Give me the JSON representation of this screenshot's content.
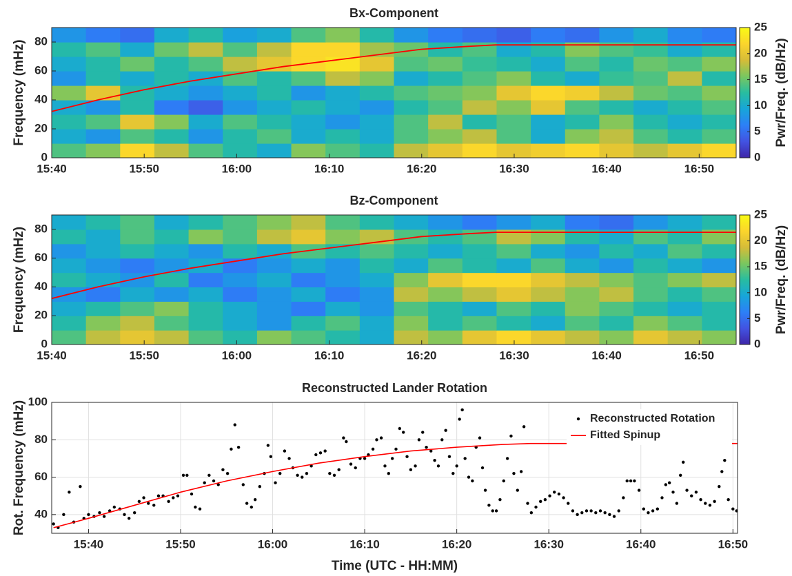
{
  "chart_data": [
    {
      "type": "heatmap",
      "title": "Bx-Component",
      "y_label": "Frequency (mHz)",
      "colorbar_label": "Pwr/Freq. (dB/Hz)",
      "xlim": [
        40,
        114
      ],
      "ylim": [
        0,
        90
      ],
      "xticks": [
        {
          "value": 40,
          "label": "15:40"
        },
        {
          "value": 50,
          "label": "15:50"
        },
        {
          "value": 60,
          "label": "16:00"
        },
        {
          "value": 70,
          "label": "16:10"
        },
        {
          "value": 80,
          "label": "16:20"
        },
        {
          "value": 90,
          "label": "16:30"
        },
        {
          "value": 100,
          "label": "16:40"
        },
        {
          "value": 110,
          "label": "16:50"
        }
      ],
      "yticks": [
        0,
        20,
        40,
        60,
        80
      ],
      "clim": [
        0,
        25
      ],
      "cticks": [
        0,
        5,
        10,
        15,
        20,
        25
      ],
      "colormap": [
        "#3e26a8",
        "#4253e2",
        "#2c80f7",
        "#17a6d9",
        "#28bda0",
        "#7ac75f",
        "#d6bc38",
        "#fbd52c",
        "#f9fb15"
      ],
      "x": [
        41.85,
        45.55,
        49.25,
        52.95,
        56.65,
        60.35,
        64.05,
        67.75,
        71.45,
        75.15,
        78.85,
        82.55,
        86.25,
        89.95,
        93.65,
        97.35,
        101.05,
        104.75,
        108.45,
        112.15
      ],
      "y": [
        5,
        15,
        25,
        35,
        45,
        55,
        65,
        75,
        85
      ],
      "z": [
        [
          14,
          16,
          22,
          18,
          14,
          12,
          10,
          16,
          14,
          12,
          18,
          20,
          22,
          20,
          21,
          22,
          20,
          18,
          20,
          22
        ],
        [
          10,
          8,
          14,
          12,
          8,
          12,
          14,
          10,
          12,
          10,
          14,
          16,
          18,
          14,
          10,
          16,
          18,
          14,
          12,
          14
        ],
        [
          12,
          14,
          20,
          16,
          10,
          14,
          12,
          10,
          8,
          10,
          14,
          18,
          12,
          14,
          10,
          12,
          16,
          12,
          10,
          12
        ],
        [
          10,
          8,
          12,
          6,
          4,
          8,
          10,
          12,
          10,
          8,
          12,
          14,
          18,
          16,
          20,
          14,
          12,
          10,
          12,
          14
        ],
        [
          16,
          20,
          12,
          10,
          8,
          10,
          12,
          8,
          10,
          12,
          14,
          15,
          16,
          20,
          22,
          21,
          18,
          15,
          14,
          16
        ],
        [
          8,
          12,
          10,
          12,
          10,
          14,
          12,
          14,
          18,
          16,
          10,
          12,
          14,
          16,
          12,
          10,
          13,
          14,
          18,
          12
        ],
        [
          10,
          12,
          15,
          12,
          14,
          18,
          20,
          22,
          23,
          20,
          14,
          15,
          13,
          12,
          10,
          14,
          12,
          15,
          14,
          16
        ],
        [
          12,
          14,
          10,
          15,
          18,
          14,
          18,
          22,
          22,
          17,
          15,
          12,
          14,
          10,
          12,
          16,
          14,
          13,
          10,
          12
        ],
        [
          8,
          6,
          5,
          10,
          12,
          9,
          10,
          14,
          16,
          12,
          8,
          6,
          5,
          4,
          6,
          5,
          8,
          10,
          7,
          6
        ]
      ],
      "fit": {
        "color": "#ff0000",
        "x": [
          40,
          45,
          50,
          55,
          60,
          65,
          70,
          75,
          80,
          85,
          88,
          114
        ],
        "values": [
          32,
          40,
          47,
          53,
          58,
          63,
          67,
          71,
          75,
          77,
          78,
          78
        ]
      }
    },
    {
      "type": "heatmap",
      "title": "Bz-Component",
      "y_label": "Frequency (mHz)",
      "colorbar_label": "Pwr/Freq. (dB/Hz)",
      "xlim": [
        40,
        114
      ],
      "ylim": [
        0,
        90
      ],
      "xticks": [
        {
          "value": 40,
          "label": "15:40"
        },
        {
          "value": 50,
          "label": "15:50"
        },
        {
          "value": 60,
          "label": "16:00"
        },
        {
          "value": 70,
          "label": "16:10"
        },
        {
          "value": 80,
          "label": "16:20"
        },
        {
          "value": 90,
          "label": "16:30"
        },
        {
          "value": 100,
          "label": "16:40"
        },
        {
          "value": 110,
          "label": "16:50"
        }
      ],
      "yticks": [
        0,
        20,
        40,
        60,
        80
      ],
      "clim": [
        0,
        25
      ],
      "cticks": [
        0,
        5,
        10,
        15,
        20,
        25
      ],
      "colormap": [
        "#3e26a8",
        "#4253e2",
        "#2c80f7",
        "#17a6d9",
        "#28bda0",
        "#7ac75f",
        "#d6bc38",
        "#fbd52c",
        "#f9fb15"
      ],
      "x": [
        41.85,
        45.55,
        49.25,
        52.95,
        56.65,
        60.35,
        64.05,
        67.75,
        71.45,
        75.15,
        78.85,
        82.55,
        86.25,
        89.95,
        93.65,
        97.35,
        101.05,
        104.75,
        108.45,
        112.15
      ],
      "y": [
        5,
        15,
        25,
        35,
        45,
        55,
        65,
        75,
        85
      ],
      "z": [
        [
          14,
          18,
          20,
          18,
          14,
          12,
          16,
          14,
          12,
          10,
          18,
          16,
          20,
          22,
          20,
          18,
          16,
          20,
          18,
          16
        ],
        [
          12,
          16,
          18,
          14,
          12,
          10,
          8,
          12,
          14,
          10,
          16,
          12,
          14,
          12,
          10,
          14,
          12,
          16,
          14,
          12
        ],
        [
          10,
          12,
          14,
          16,
          12,
          10,
          8,
          6,
          10,
          8,
          14,
          12,
          10,
          14,
          12,
          16,
          14,
          12,
          10,
          12
        ],
        [
          8,
          6,
          10,
          8,
          10,
          6,
          8,
          10,
          6,
          8,
          18,
          16,
          18,
          20,
          18,
          16,
          18,
          14,
          12,
          14
        ],
        [
          12,
          10,
          8,
          12,
          6,
          8,
          10,
          6,
          8,
          10,
          16,
          20,
          22,
          22,
          20,
          18,
          16,
          14,
          16,
          18
        ],
        [
          10,
          8,
          6,
          8,
          10,
          6,
          8,
          10,
          8,
          12,
          10,
          14,
          12,
          10,
          14,
          10,
          8,
          12,
          10,
          8
        ],
        [
          8,
          10,
          12,
          10,
          8,
          12,
          10,
          14,
          12,
          14,
          12,
          10,
          12,
          14,
          10,
          8,
          12,
          10,
          14,
          12
        ],
        [
          12,
          10,
          14,
          12,
          16,
          14,
          18,
          20,
          16,
          18,
          14,
          12,
          14,
          18,
          16,
          12,
          10,
          14,
          12,
          16
        ],
        [
          10,
          12,
          14,
          10,
          12,
          14,
          16,
          18,
          14,
          12,
          10,
          8,
          6,
          8,
          10,
          6,
          5,
          8,
          10,
          12
        ]
      ],
      "fit": {
        "color": "#ff0000",
        "x": [
          40,
          45,
          50,
          55,
          60,
          65,
          70,
          75,
          80,
          85,
          88,
          114
        ],
        "values": [
          32,
          40,
          47,
          53,
          58,
          63,
          67,
          71,
          75,
          77,
          78,
          78
        ]
      }
    },
    {
      "type": "scatter",
      "title": "Reconstructed Lander Rotation",
      "x_label": "Time (UTC - HH:MM)",
      "y_label": "Rot. Frequency (mHz)",
      "xlim": [
        36,
        110.5
      ],
      "ylim": [
        30,
        100
      ],
      "grid": true,
      "legend": "upper right",
      "xticks": [
        {
          "value": 40,
          "label": "15:40"
        },
        {
          "value": 50,
          "label": "15:50"
        },
        {
          "value": 60,
          "label": "16:00"
        },
        {
          "value": 70,
          "label": "16:10"
        },
        {
          "value": 80,
          "label": "16:20"
        },
        {
          "value": 90,
          "label": "16:30"
        },
        {
          "value": 100,
          "label": "16:40"
        },
        {
          "value": 110,
          "label": "16:50"
        }
      ],
      "yticks": [
        40,
        60,
        80,
        100
      ],
      "series": [
        {
          "name": "Reconstructed Rotation",
          "color": "#000000",
          "x": [
            36.2,
            36.7,
            37.3,
            37.9,
            38.4,
            39.1,
            39.5,
            40.0,
            40.6,
            41.2,
            41.7,
            42.3,
            42.8,
            43.4,
            43.9,
            44.4,
            45.0,
            45.5,
            46.0,
            46.5,
            47.1,
            47.6,
            48.1,
            48.7,
            49.2,
            49.7,
            50.3,
            50.7,
            51.2,
            51.6,
            52.1,
            52.6,
            53.1,
            53.6,
            54.1,
            54.6,
            55.1,
            55.5,
            55.9,
            56.3,
            56.8,
            57.2,
            57.7,
            58.1,
            58.6,
            59.1,
            59.5,
            59.8,
            60.3,
            60.8,
            61.3,
            61.8,
            62.2,
            62.7,
            63.2,
            63.7,
            64.2,
            64.7,
            65.2,
            65.7,
            66.2,
            66.7,
            67.2,
            67.7,
            68.0,
            68.5,
            69.0,
            69.5,
            70.0,
            70.4,
            70.9,
            71.3,
            71.8,
            72.2,
            72.6,
            73.0,
            73.4,
            73.8,
            74.2,
            74.6,
            75.0,
            75.5,
            75.9,
            76.3,
            76.7,
            77.2,
            77.6,
            78.0,
            78.4,
            78.8,
            79.2,
            79.6,
            80.0,
            80.3,
            80.6,
            80.9,
            81.3,
            81.7,
            82.1,
            82.5,
            82.8,
            83.1,
            83.5,
            83.9,
            84.3,
            84.7,
            85.1,
            85.5,
            85.9,
            86.2,
            86.6,
            87.0,
            87.3,
            87.7,
            88.1,
            88.6,
            89.1,
            89.6,
            90.1,
            90.6,
            91.1,
            91.6,
            92.1,
            92.6,
            93.1,
            93.6,
            94.1,
            94.6,
            95.1,
            95.6,
            96.1,
            96.6,
            97.1,
            97.6,
            98.1,
            98.5,
            98.9,
            99.3,
            99.8,
            100.3,
            100.8,
            101.3,
            101.8,
            102.3,
            102.7,
            103.1,
            103.5,
            103.9,
            104.3,
            104.6,
            105.0,
            105.5,
            106.0,
            106.5,
            107.0,
            107.5,
            108.0,
            108.5,
            108.8,
            109.1,
            109.5,
            110.0,
            110.4
          ],
          "values": [
            35,
            33,
            40,
            52,
            36,
            55,
            38,
            40,
            39,
            41,
            39,
            42,
            44,
            43,
            40,
            38,
            41,
            47,
            49,
            46,
            45,
            50,
            50,
            47,
            49,
            50,
            61,
            61,
            51,
            44,
            43,
            57,
            61,
            58,
            56,
            64,
            62,
            75,
            88,
            76,
            56,
            46,
            44,
            48,
            55,
            62,
            77,
            71,
            57,
            62,
            74,
            70,
            65,
            61,
            60,
            62,
            66,
            72,
            73,
            74,
            62,
            61,
            64,
            81,
            79,
            67,
            65,
            70,
            70,
            72,
            75,
            80,
            81,
            66,
            62,
            70,
            75,
            86,
            84,
            71,
            64,
            66,
            80,
            84,
            76,
            74,
            69,
            66,
            80,
            85,
            71,
            62,
            66,
            91,
            96,
            70,
            60,
            58,
            76,
            81,
            65,
            53,
            45,
            42,
            42,
            48,
            58,
            70,
            82,
            62,
            53,
            63,
            87,
            46,
            41,
            44,
            47,
            48,
            50,
            52,
            51,
            49,
            46,
            42,
            40,
            41,
            42,
            42,
            41,
            42,
            41,
            40,
            39,
            42,
            49,
            58,
            58,
            58,
            53,
            43,
            41,
            42,
            43,
            49,
            56,
            57,
            52,
            46,
            61,
            68,
            53,
            50,
            52,
            48,
            46,
            45,
            47,
            55,
            63,
            69,
            48,
            43,
            42
          ]
        },
        {
          "name": "Fitted Spinup",
          "color": "#ff0000",
          "type": "line",
          "x": [
            36.2,
            40,
            45,
            50,
            55,
            60,
            65,
            70,
            75,
            80,
            85,
            88,
            110.5
          ],
          "values": [
            33,
            38,
            45,
            52,
            58,
            63,
            67.5,
            71,
            74,
            76,
            77.5,
            78,
            78
          ]
        }
      ]
    }
  ]
}
